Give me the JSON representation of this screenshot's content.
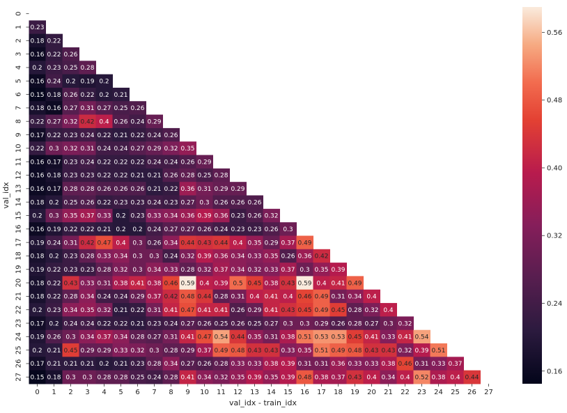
{
  "chart_data": {
    "type": "heatmap",
    "title": "",
    "xlabel": "val_idx - train_idx",
    "ylabel": "val_idx",
    "x_ticks": [
      "0",
      "1",
      "2",
      "3",
      "4",
      "5",
      "6",
      "7",
      "8",
      "9",
      "10",
      "11",
      "12",
      "13",
      "14",
      "15",
      "16",
      "17",
      "18",
      "19",
      "20",
      "21",
      "22",
      "23",
      "24",
      "25",
      "26",
      "27"
    ],
    "y_ticks": [
      "0",
      "1",
      "2",
      "3",
      "4",
      "5",
      "6",
      "7",
      "8",
      "9",
      "10",
      "11",
      "12",
      "13",
      "14",
      "15",
      "16",
      "17",
      "18",
      "19",
      "20",
      "21",
      "22",
      "23",
      "24",
      "25",
      "26",
      "27"
    ],
    "colormap": "rocket",
    "vmin": 0.145,
    "vmax": 0.59,
    "colorbar_ticks": [
      "0.56",
      "0.48",
      "0.40",
      "0.32",
      "0.24",
      "0.16"
    ],
    "colorbar_tick_values": [
      0.56,
      0.48,
      0.4,
      0.32,
      0.24,
      0.16
    ],
    "mask": "lower-triangle",
    "rows": [
      [],
      [
        0.23
      ],
      [
        0.18,
        0.22
      ],
      [
        0.16,
        0.22,
        0.26
      ],
      [
        0.2,
        0.23,
        0.25,
        0.28
      ],
      [
        0.16,
        0.24,
        0.2,
        0.19,
        0.2
      ],
      [
        0.15,
        0.18,
        0.26,
        0.22,
        0.2,
        0.21
      ],
      [
        0.18,
        0.16,
        0.27,
        0.31,
        0.27,
        0.25,
        0.26
      ],
      [
        0.22,
        0.27,
        0.32,
        0.42,
        0.4,
        0.26,
        0.24,
        0.29
      ],
      [
        0.17,
        0.22,
        0.23,
        0.24,
        0.22,
        0.21,
        0.22,
        0.24,
        0.26
      ],
      [
        0.22,
        0.3,
        0.32,
        0.31,
        0.24,
        0.24,
        0.27,
        0.29,
        0.32,
        0.35
      ],
      [
        0.16,
        0.17,
        0.23,
        0.24,
        0.22,
        0.22,
        0.22,
        0.24,
        0.24,
        0.26,
        0.29
      ],
      [
        0.16,
        0.18,
        0.23,
        0.23,
        0.22,
        0.22,
        0.21,
        0.21,
        0.26,
        0.28,
        0.25,
        0.28
      ],
      [
        0.16,
        0.17,
        0.28,
        0.28,
        0.26,
        0.26,
        0.26,
        0.21,
        0.22,
        0.36,
        0.31,
        0.29,
        0.29
      ],
      [
        0.18,
        0.2,
        0.25,
        0.26,
        0.22,
        0.23,
        0.23,
        0.24,
        0.23,
        0.27,
        0.3,
        0.26,
        0.26,
        0.26
      ],
      [
        0.2,
        0.3,
        0.35,
        0.37,
        0.33,
        0.2,
        0.23,
        0.33,
        0.34,
        0.36,
        0.39,
        0.36,
        0.23,
        0.26,
        0.32
      ],
      [
        0.16,
        0.19,
        0.22,
        0.22,
        0.21,
        0.2,
        0.2,
        0.24,
        0.27,
        0.27,
        0.26,
        0.24,
        0.23,
        0.23,
        0.26,
        0.3
      ],
      [
        0.19,
        0.24,
        0.31,
        0.42,
        0.47,
        0.4,
        0.3,
        0.26,
        0.34,
        0.44,
        0.43,
        0.44,
        0.4,
        0.35,
        0.29,
        0.37,
        0.49
      ],
      [
        0.18,
        0.2,
        0.23,
        0.28,
        0.33,
        0.34,
        0.3,
        0.3,
        0.24,
        0.32,
        0.39,
        0.36,
        0.34,
        0.33,
        0.35,
        0.26,
        0.36,
        0.42
      ],
      [
        0.19,
        0.22,
        0.23,
        0.23,
        0.28,
        0.32,
        0.3,
        0.34,
        0.33,
        0.28,
        0.32,
        0.37,
        0.34,
        0.32,
        0.33,
        0.37,
        0.3,
        0.35,
        0.39
      ],
      [
        0.18,
        0.22,
        0.43,
        0.33,
        0.31,
        0.38,
        0.41,
        0.38,
        0.46,
        0.59,
        0.4,
        0.39,
        0.5,
        0.45,
        0.38,
        0.43,
        0.59,
        0.4,
        0.41,
        0.49
      ],
      [
        0.18,
        0.22,
        0.28,
        0.34,
        0.24,
        0.24,
        0.29,
        0.37,
        0.42,
        0.48,
        0.44,
        0.28,
        0.31,
        0.4,
        0.41,
        0.4,
        0.46,
        0.49,
        0.31,
        0.34,
        0.4
      ],
      [
        0.2,
        0.23,
        0.34,
        0.35,
        0.32,
        0.21,
        0.22,
        0.31,
        0.41,
        0.47,
        0.41,
        0.41,
        0.26,
        0.29,
        0.41,
        0.43,
        0.45,
        0.49,
        0.45,
        0.28,
        0.32,
        0.4
      ],
      [
        0.17,
        0.2,
        0.24,
        0.24,
        0.22,
        0.22,
        0.21,
        0.23,
        0.24,
        0.27,
        0.26,
        0.25,
        0.26,
        0.25,
        0.27,
        0.3,
        0.3,
        0.29,
        0.26,
        0.28,
        0.27,
        0.3,
        0.32
      ],
      [
        0.19,
        0.26,
        0.3,
        0.34,
        0.37,
        0.34,
        0.28,
        0.27,
        0.31,
        0.41,
        0.47,
        0.54,
        0.44,
        0.35,
        0.31,
        0.38,
        0.51,
        0.53,
        0.53,
        0.45,
        0.41,
        0.33,
        0.41,
        0.54
      ],
      [
        0.2,
        0.21,
        0.45,
        0.29,
        0.29,
        0.33,
        0.32,
        0.3,
        0.28,
        0.29,
        0.37,
        0.49,
        0.48,
        0.43,
        0.43,
        0.33,
        0.35,
        0.51,
        0.49,
        0.48,
        0.43,
        0.43,
        0.32,
        0.39,
        0.51
      ],
      [
        0.17,
        0.21,
        0.21,
        0.21,
        0.2,
        0.21,
        0.23,
        0.28,
        0.34,
        0.27,
        0.26,
        0.28,
        0.33,
        0.33,
        0.38,
        0.39,
        0.31,
        0.31,
        0.36,
        0.33,
        0.33,
        0.38,
        0.46,
        0.31,
        0.33,
        0.37
      ],
      [
        0.15,
        0.18,
        0.3,
        0.3,
        0.28,
        0.28,
        0.25,
        0.24,
        0.28,
        0.41,
        0.34,
        0.32,
        0.35,
        0.39,
        0.35,
        0.39,
        0.48,
        0.38,
        0.37,
        0.43,
        0.4,
        0.34,
        0.4,
        0.52,
        0.38,
        0.4,
        0.44
      ]
    ]
  }
}
